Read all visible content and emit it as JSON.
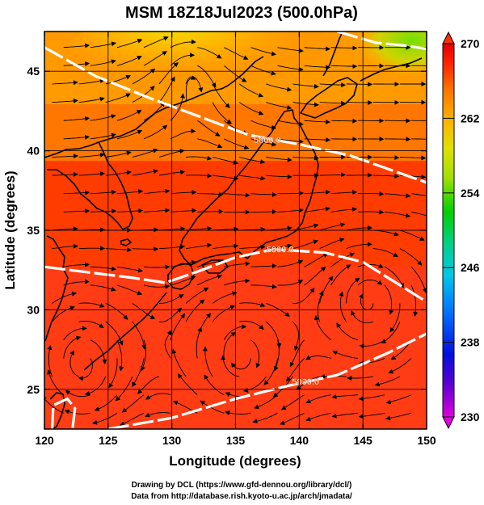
{
  "figure": {
    "title": "MSM 18Z18Jul2023 (500.0hPa)",
    "xlabel": "Longitude (degrees)",
    "ylabel": "Latitude (degrees)",
    "credit_line1": "Drawing by DCL (https://www.gfd-dennou.org/library/dcl/)",
    "credit_line2": "Data from http://database.rish.kyoto-u.ac.jp/arch/jmadata/"
  },
  "chart_data": {
    "type": "heatmap",
    "xlim": [
      120,
      150
    ],
    "ylim": [
      22.5,
      47.5
    ],
    "xticks": [
      120,
      125,
      130,
      135,
      140,
      145,
      150
    ],
    "yticks": [
      25,
      30,
      35,
      40,
      45
    ],
    "xtick_labels": [
      "120",
      "125",
      "130",
      "135",
      "140",
      "145",
      "150"
    ],
    "ytick_labels": [
      "25",
      "30",
      "35",
      "40",
      "45"
    ],
    "grid": true,
    "colorbar": {
      "range": [
        230,
        270
      ],
      "ticks": [
        230,
        238,
        246,
        254,
        262,
        270
      ],
      "tick_labels": [
        "230",
        "238",
        "246",
        "254",
        "262",
        "270"
      ],
      "colors": [
        "#e000e0",
        "#5a00d0",
        "#0010e0",
        "#0070ff",
        "#00c8e8",
        "#00d080",
        "#00d000",
        "#a0e000",
        "#e0e000",
        "#ffb000",
        "#ff7000",
        "#ff2000",
        "#e00000"
      ]
    },
    "contours": [
      {
        "label": "5800.0",
        "points": [
          [
            120,
            46.5
          ],
          [
            124,
            44.7
          ],
          [
            128,
            43.4
          ],
          [
            132,
            42.2
          ],
          [
            136,
            41.0
          ],
          [
            140,
            40.4
          ],
          [
            144,
            39.7
          ],
          [
            150,
            38.0
          ]
        ],
        "label_at": [
          137.5,
          40.7
        ]
      },
      {
        "label": "5900.0",
        "points": [
          [
            120,
            32.7
          ],
          [
            124,
            32.3
          ],
          [
            127,
            32.0
          ],
          [
            129.5,
            31.7
          ],
          [
            132,
            32.4
          ],
          [
            135,
            33.3
          ],
          [
            138,
            33.8
          ],
          [
            142,
            33.6
          ],
          [
            145,
            33.0
          ],
          [
            148,
            31.5
          ],
          [
            150,
            30.5
          ]
        ],
        "label_at": [
          138.5,
          33.8
        ]
      },
      {
        "label": "5930.0",
        "points": [
          [
            125,
            22.5
          ],
          [
            130,
            23.2
          ],
          [
            135,
            24.4
          ],
          [
            139,
            25.2
          ],
          [
            143,
            25.9
          ],
          [
            147,
            27.3
          ],
          [
            150,
            28.5
          ]
        ],
        "label_at": [
          140.5,
          25.5
        ]
      },
      {
        "label": "",
        "points": [
          [
            143,
            47.5
          ],
          [
            146,
            46.8
          ],
          [
            148.5,
            46.6
          ],
          [
            150,
            46.4
          ]
        ],
        "label_at": null
      },
      {
        "label": "",
        "points": [
          [
            120.6,
            22.5
          ],
          [
            120.7,
            24.0
          ],
          [
            121.8,
            24.4
          ],
          [
            122.4,
            23.8
          ],
          [
            122.2,
            22.5
          ]
        ],
        "label_at": null
      }
    ],
    "flow_centers": [
      {
        "type": "anticyclone",
        "lon": 131.5,
        "lat": 45.0
      },
      {
        "type": "anticyclone",
        "lon": 135.5,
        "lat": 27.0
      },
      {
        "type": "anticyclone",
        "lon": 123.0,
        "lat": 26.5
      },
      {
        "type": "anticyclone",
        "lon": 145.5,
        "lat": 30.5
      }
    ]
  }
}
